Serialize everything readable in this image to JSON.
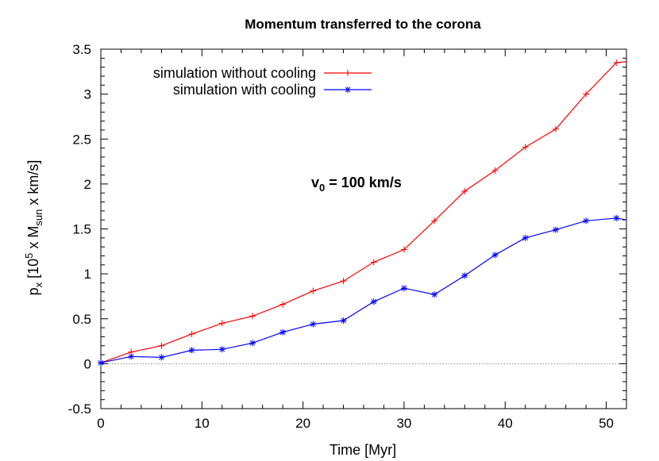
{
  "chart_data": {
    "type": "line",
    "title": "Momentum transferred to the corona",
    "xlabel": "Time [Myr]",
    "ylabel_parts": [
      "p",
      "x",
      " [10",
      "5",
      " x M",
      "sun",
      " x km/s]"
    ],
    "xlim": [
      0,
      52
    ],
    "ylim": [
      -0.5,
      3.5
    ],
    "xticks": [
      0,
      10,
      20,
      30,
      40,
      50
    ],
    "yticks": [
      -0.5,
      0,
      0.5,
      1,
      1.5,
      2,
      2.5,
      3,
      3.5
    ],
    "zero_line": true,
    "grid": false,
    "legend_position": "top-left",
    "annotation_parts": [
      "v",
      "0",
      " = 100 km/s"
    ],
    "series": [
      {
        "name": "simulation without cooling",
        "color": "#ff0000",
        "marker": "plus",
        "x": [
          0,
          3,
          6,
          9,
          12,
          15,
          18,
          21,
          24,
          27,
          30,
          33,
          36,
          39,
          42,
          45,
          48,
          51,
          52
        ],
        "y": [
          0.01,
          0.13,
          0.2,
          0.33,
          0.45,
          0.53,
          0.66,
          0.81,
          0.92,
          1.13,
          1.27,
          1.59,
          1.92,
          2.15,
          2.41,
          2.61,
          3.0,
          3.35,
          3.36
        ]
      },
      {
        "name": "simulation with cooling",
        "color": "#0000ff",
        "marker": "star",
        "x": [
          0,
          3,
          6,
          9,
          12,
          15,
          18,
          21,
          24,
          27,
          30,
          33,
          36,
          39,
          42,
          45,
          48,
          51,
          52
        ],
        "y": [
          0.01,
          0.08,
          0.07,
          0.15,
          0.16,
          0.23,
          0.35,
          0.44,
          0.48,
          0.69,
          0.84,
          0.77,
          0.98,
          1.21,
          1.4,
          1.49,
          1.59,
          1.62,
          1.6
        ]
      }
    ]
  }
}
